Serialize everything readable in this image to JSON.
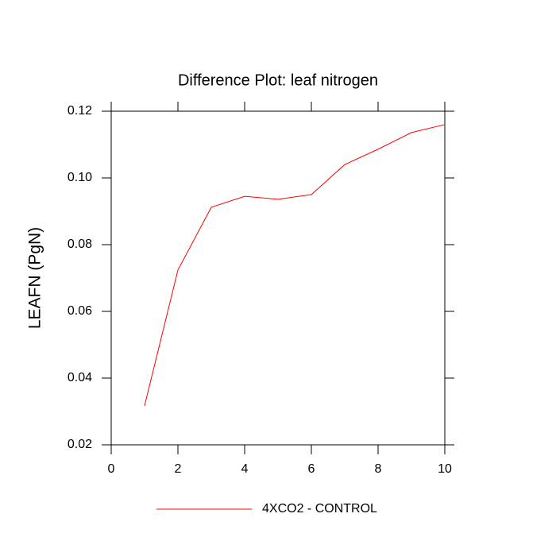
{
  "chart_data": {
    "type": "line",
    "title": "Difference Plot: leaf nitrogen",
    "y_label": "LEAFN  (PgN)",
    "x": [
      1,
      2,
      3,
      4,
      5,
      6,
      7,
      8,
      9,
      10
    ],
    "series": [
      {
        "name": "4XCO2 - CONTROL",
        "color": "#ff0000",
        "values": [
          0.0317,
          0.0724,
          0.0912,
          0.0945,
          0.0936,
          0.095,
          0.104,
          0.1086,
          0.1136,
          0.116
        ]
      }
    ],
    "xlim": [
      0,
      10
    ],
    "xticks": [
      0,
      2,
      4,
      6,
      8,
      10
    ],
    "ylim": [
      0.02,
      0.12
    ],
    "yticks": [
      0.02,
      0.04,
      0.06,
      0.08,
      {
        "value": 0.1,
        "label": "0.10"
      },
      0.12
    ],
    "legend": "bottom"
  }
}
